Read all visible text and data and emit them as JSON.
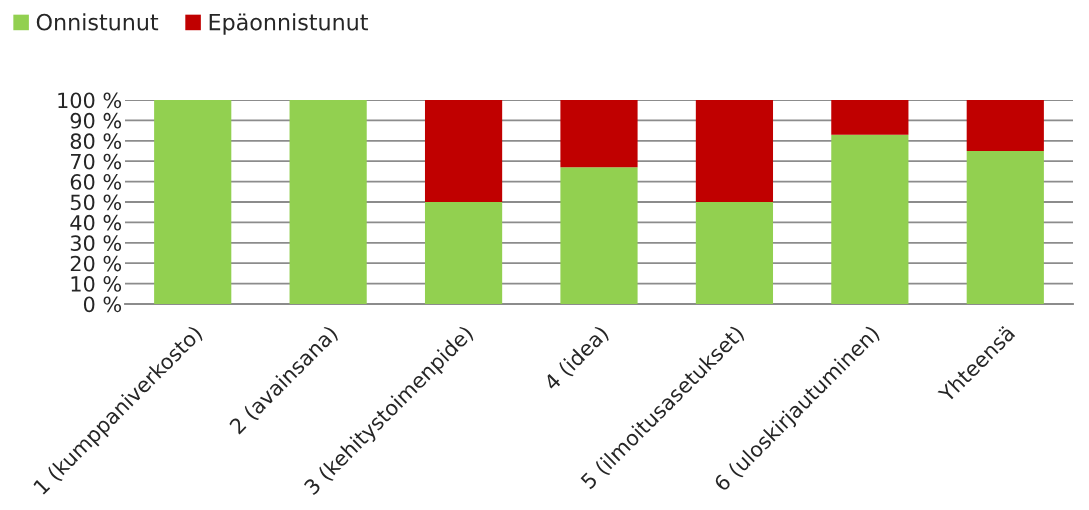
{
  "chart_data": {
    "type": "bar",
    "stacked": true,
    "categories": [
      "1 (kumppaniverkosto)",
      "2 (avainsana)",
      "3 (kehitystoimenpide)",
      "4 (idea)",
      "5 (ilmoitusasetukset)",
      "6 (uloskirjautuminen)",
      "Yhteensä"
    ],
    "series": [
      {
        "name": "Onnistunut",
        "color": "#92d050",
        "values": [
          100,
          100,
          50,
          67,
          50,
          83,
          75
        ]
      },
      {
        "name": "Epäonnistunut",
        "color": "#c00000",
        "values": [
          0,
          0,
          50,
          33,
          50,
          17,
          25
        ]
      }
    ],
    "ylim": [
      0,
      100
    ],
    "yticks": [
      {
        "value": 0,
        "label": "0 %"
      },
      {
        "value": 10,
        "label": "10 %"
      },
      {
        "value": 20,
        "label": "20 %"
      },
      {
        "value": 30,
        "label": "30 %"
      },
      {
        "value": 40,
        "label": "40 %"
      },
      {
        "value": 50,
        "label": "50 %"
      },
      {
        "value": 60,
        "label": "60 %"
      },
      {
        "value": 70,
        "label": "70 %"
      },
      {
        "value": 80,
        "label": "80 %"
      },
      {
        "value": 90,
        "label": "90 %"
      },
      {
        "value": 100,
        "label": "100 %"
      }
    ],
    "grid": "y",
    "legend": "top left"
  }
}
